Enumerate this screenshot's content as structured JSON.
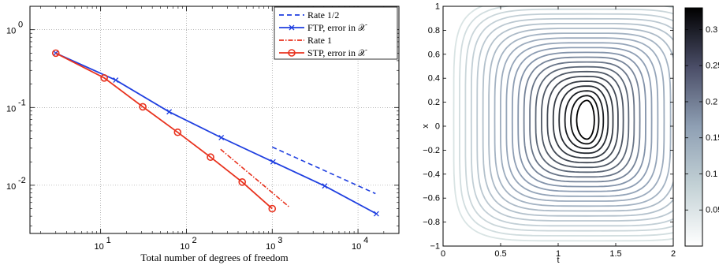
{
  "chart_data": [
    {
      "type": "line",
      "xscale": "log",
      "yscale": "log",
      "xlabel": "Total number of degrees of freedom",
      "ylabel": "",
      "xlim": [
        1.5,
        30000
      ],
      "ylim": [
        0.0024,
        2
      ],
      "grid": true,
      "legend_position": "top-right",
      "x_ticks": [
        {
          "value": 10,
          "label": "10",
          "exp": "1"
        },
        {
          "value": 100,
          "label": "10",
          "exp": "2"
        },
        {
          "value": 1000,
          "label": "10",
          "exp": "3"
        },
        {
          "value": 10000,
          "label": "10",
          "exp": "4"
        }
      ],
      "y_ticks": [
        {
          "value": 1,
          "label": "10",
          "exp": "0"
        },
        {
          "value": 0.1,
          "label": "10",
          "exp": "-1"
        },
        {
          "value": 0.01,
          "label": "10",
          "exp": "-2"
        }
      ],
      "series": [
        {
          "name": "Rate 1/2",
          "color": "#1f3fe0",
          "dash": "6,4",
          "marker": "none",
          "x": [
            1000,
            16000
          ],
          "y": [
            0.031,
            0.0078
          ]
        },
        {
          "name": "FTP, error in 𝒳",
          "color": "#1f3fe0",
          "dash": "",
          "marker": "x",
          "x": [
            3,
            15,
            63,
            255,
            1023,
            4095,
            16383
          ],
          "y": [
            0.5,
            0.225,
            0.088,
            0.041,
            0.02,
            0.0098,
            0.0043
          ]
        },
        {
          "name": "Rate 1",
          "color": "#e8321e",
          "dash": "6,2,1.5,2",
          "marker": "none",
          "x": [
            250,
            1600
          ],
          "y": [
            0.029,
            0.0052
          ]
        },
        {
          "name": "STP, error in 𝒳",
          "color": "#e8321e",
          "dash": "",
          "marker": "o",
          "x": [
            3,
            11,
            31,
            79,
            191,
            447,
            1000
          ],
          "y": [
            0.5,
            0.24,
            0.102,
            0.048,
            0.023,
            0.011,
            0.005
          ]
        }
      ]
    },
    {
      "type": "contour",
      "xlabel": "t",
      "ylabel": "x",
      "xlim": [
        0,
        2
      ],
      "ylim": [
        -1,
        1
      ],
      "x_ticks": [
        "0",
        "0.5",
        "1",
        "1.5",
        "2"
      ],
      "y_ticks": [
        "−1",
        "−0.8",
        "−0.6",
        "−0.4",
        "−0.2",
        "0",
        "0.2",
        "0.4",
        "0.6",
        "0.8",
        "1"
      ],
      "center": {
        "t": 1.25,
        "x": 0.05
      },
      "levels": 22,
      "colorbar": {
        "range": [
          0,
          0.33
        ],
        "ticks": [
          "0.05",
          "0.1",
          "0.15",
          "0.2",
          "0.25",
          "0.3"
        ],
        "colors": [
          "#ffffff",
          "#8a9ab2",
          "#000000"
        ]
      }
    }
  ]
}
